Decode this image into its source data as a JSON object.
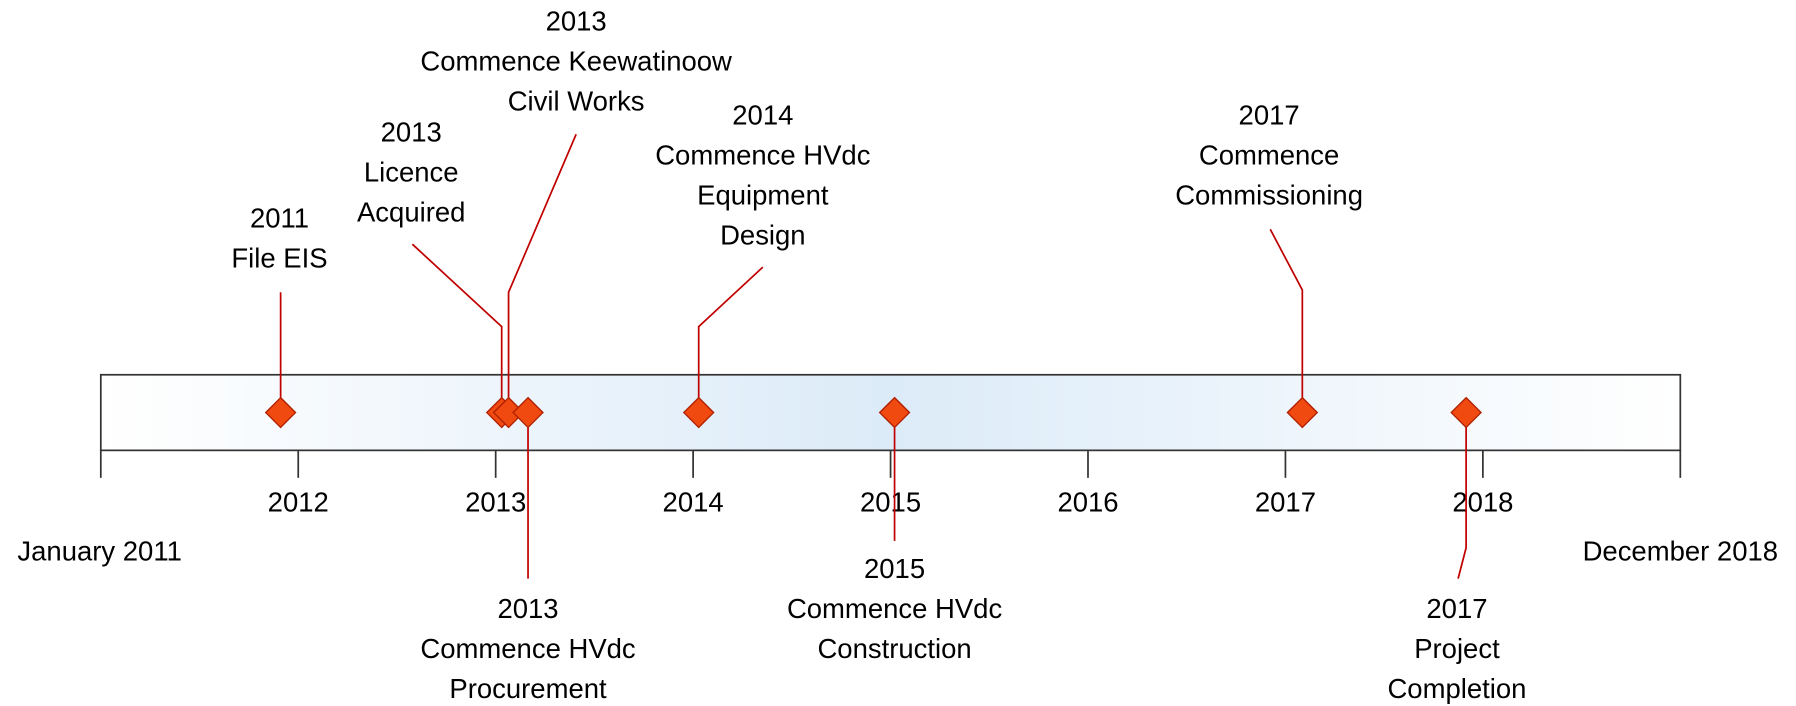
{
  "timeline": {
    "start": "January 2011",
    "end": "December 2018",
    "years": [
      "2012",
      "2013",
      "2014",
      "2015",
      "2016",
      "2017",
      "2018"
    ],
    "events": [
      {
        "date": "2011",
        "lines": [
          "File EIS"
        ]
      },
      {
        "date": "2013",
        "lines": [
          "Licence",
          "Acquired"
        ]
      },
      {
        "date": "2013",
        "lines": [
          "Commence Keewatinoow",
          "Civil Works"
        ]
      },
      {
        "date": "2013",
        "lines": [
          "Commence HVdc",
          "Procurement"
        ]
      },
      {
        "date": "2014",
        "lines": [
          "Commence HVdc",
          "Equipment",
          "Design"
        ]
      },
      {
        "date": "2015",
        "lines": [
          "Commence HVdc",
          "Construction"
        ]
      },
      {
        "date": "2017",
        "lines": [
          "Commence",
          "Commissioning"
        ]
      },
      {
        "date": "2017",
        "lines": [
          "Project",
          "Completion"
        ]
      }
    ]
  }
}
